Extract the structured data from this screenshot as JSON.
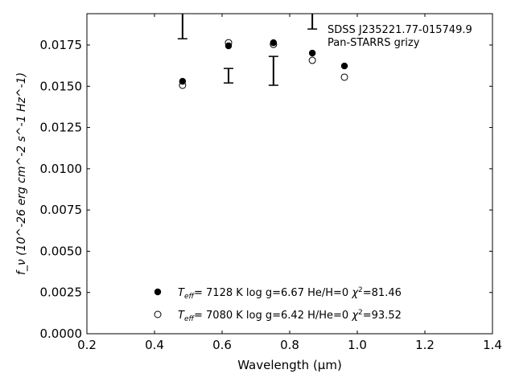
{
  "chart_data": {
    "type": "scatter",
    "xlabel": "Wavelength (μm)",
    "ylabel": "f_ν (10^-26 erg cm^-2 s^-1 Hz^-1)",
    "xlim": [
      0.2,
      1.4
    ],
    "ylim": [
      0.0,
      0.0194
    ],
    "xticks": [
      "0.2",
      "0.4",
      "0.6",
      "0.8",
      "1.0",
      "1.2",
      "1.4"
    ],
    "yticks": [
      "0.0000",
      "0.0025",
      "0.0050",
      "0.0075",
      "0.0100",
      "0.0125",
      "0.0150",
      "0.0175"
    ],
    "grid": false,
    "annotation": [
      "SDSS J235221.77-015749.9",
      "Pan-STARRS grizy"
    ],
    "observed": {
      "x": [
        0.483,
        0.619,
        0.752,
        0.867
      ],
      "ylo": [
        0.01788,
        0.0152,
        0.01506,
        0.01847
      ],
      "yhi": [
        0.0205,
        0.01608,
        0.01681,
        0.0205
      ]
    },
    "series": [
      {
        "name": "T_eff= 7128 K  log g=6.67  He/H=0  χ²=81.46",
        "marker": "filled",
        "x": [
          0.483,
          0.619,
          0.752,
          0.867,
          0.962
        ],
        "y": [
          0.0153,
          0.01745,
          0.01764,
          0.01701,
          0.01623
        ]
      },
      {
        "name": "T_eff= 7080 K  log g=6.42  H/He=0  χ²=93.52",
        "marker": "open",
        "x": [
          0.483,
          0.619,
          0.752,
          0.867,
          0.962
        ],
        "y": [
          0.01506,
          0.01764,
          0.01754,
          0.01657,
          0.01555
        ]
      }
    ],
    "legend": [
      {
        "teff": "7128 K",
        "rest": "log g=6.67  He/H=0",
        "chi": "=81.46"
      },
      {
        "teff": "7080 K",
        "rest": "log g=6.42  H/He=0",
        "chi": "=93.52"
      }
    ],
    "legend_position": "bottom-center"
  }
}
